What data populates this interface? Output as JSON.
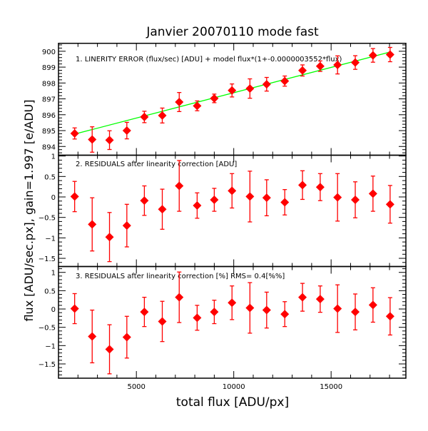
{
  "chart_data": {
    "type": "scatter",
    "title": "Janvier 20070110 mode fast",
    "xlabel": "total flux [ADU/px]",
    "ylabel": "flux [ADU/sec.px], gain=1.997 [e/ADU]",
    "xlim": [
      1000,
      18840
    ],
    "xticks": [
      5000,
      10000,
      15000
    ],
    "grid": false,
    "colors": {
      "points": "#ff0000",
      "fit_line": "#00ff00",
      "axes": "#000000"
    },
    "x": [
      1830,
      2730,
      3620,
      4510,
      5410,
      6330,
      7200,
      8120,
      9000,
      9910,
      10830,
      11690,
      12620,
      13530,
      14440,
      15330,
      16240,
      17150,
      18030
    ],
    "panels": [
      {
        "label": "1. LINERITY ERROR (flux/sec) [ADU] + model flux*(1+-0.0000003552*flux)",
        "ylim": [
          893.45,
          900.5
        ],
        "yticks": [
          "894",
          "895",
          "896",
          "897",
          "898",
          "899",
          "900"
        ],
        "y": [
          894.82,
          894.44,
          894.4,
          895.0,
          895.86,
          895.95,
          896.8,
          896.56,
          897.03,
          897.53,
          897.65,
          897.92,
          898.12,
          898.79,
          899.06,
          899.14,
          899.29,
          899.74,
          899.79
        ],
        "yerr": [
          0.35,
          0.8,
          0.59,
          0.52,
          0.36,
          0.47,
          0.6,
          0.31,
          0.27,
          0.41,
          0.61,
          0.43,
          0.32,
          0.35,
          0.33,
          0.57,
          0.43,
          0.43,
          0.45
        ],
        "fit_line": {
          "x": [
            1830,
            18030
          ],
          "y": [
            894.78,
            899.95
          ]
        }
      },
      {
        "label": "2. RESIDUALS after linearity correction [ADU]",
        "ylim": [
          -1.7,
          1.02
        ],
        "yticks": [
          "1",
          "0.5",
          "0",
          "-0.5",
          "-1",
          "-1.5"
        ],
        "y": [
          0.01,
          -0.67,
          -0.98,
          -0.7,
          -0.09,
          -0.3,
          0.27,
          -0.21,
          -0.07,
          0.15,
          0.01,
          -0.02,
          -0.13,
          0.29,
          0.24,
          -0.01,
          -0.07,
          0.08,
          -0.18
        ],
        "yerr": [
          0.37,
          0.65,
          0.6,
          0.52,
          0.36,
          0.49,
          0.62,
          0.31,
          0.28,
          0.42,
          0.62,
          0.44,
          0.31,
          0.35,
          0.33,
          0.58,
          0.44,
          0.43,
          0.46
        ]
      },
      {
        "label": "3. RESIDUALS after linearity correction [%] RMS=  0.4[%%]",
        "ylim": [
          -1.89,
          1.16
        ],
        "yticks": [
          "1",
          "0.5",
          "0",
          "-0.5",
          "-1",
          "-1.5"
        ],
        "y": [
          0.01,
          -0.75,
          -1.1,
          -0.77,
          -0.08,
          -0.34,
          0.32,
          -0.24,
          -0.08,
          0.17,
          0.03,
          -0.03,
          -0.14,
          0.32,
          0.27,
          0.01,
          -0.08,
          0.11,
          -0.2
        ],
        "yerr": [
          0.41,
          0.72,
          0.67,
          0.57,
          0.4,
          0.55,
          0.69,
          0.34,
          0.32,
          0.46,
          0.69,
          0.49,
          0.34,
          0.38,
          0.36,
          0.65,
          0.49,
          0.47,
          0.51
        ]
      }
    ]
  }
}
